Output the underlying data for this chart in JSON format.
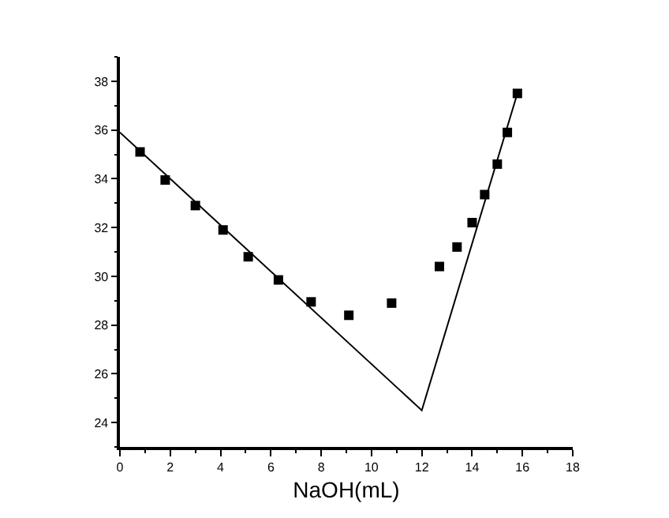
{
  "chart_data": {
    "type": "scatter",
    "xlabel": "NaOH(mL)",
    "xlim": [
      0,
      18
    ],
    "ylim": [
      23,
      39
    ],
    "xticks": [
      0,
      2,
      4,
      6,
      8,
      10,
      12,
      14,
      16,
      18
    ],
    "yticks": [
      24,
      26,
      28,
      30,
      32,
      34,
      36,
      38
    ],
    "series": [
      {
        "color": "#000000",
        "marker": "square",
        "x": [
          0.8,
          1.8,
          3.0,
          4.1,
          5.1,
          6.3,
          7.6,
          9.1,
          10.8,
          12.7,
          13.4,
          14.0,
          14.5,
          15.0,
          15.4,
          15.8
        ],
        "values": [
          35.1,
          33.95,
          32.9,
          31.9,
          30.8,
          29.85,
          28.95,
          28.4,
          28.9,
          30.4,
          31.2,
          32.2,
          33.35,
          34.6,
          35.9,
          37.5
        ]
      },
      {
        "type": "line",
        "color": "#000000",
        "marker": "none",
        "line_style": "solid",
        "x": [
          0,
          12.0,
          15.8
        ],
        "values": [
          35.9,
          24.5,
          37.5
        ]
      }
    ]
  }
}
